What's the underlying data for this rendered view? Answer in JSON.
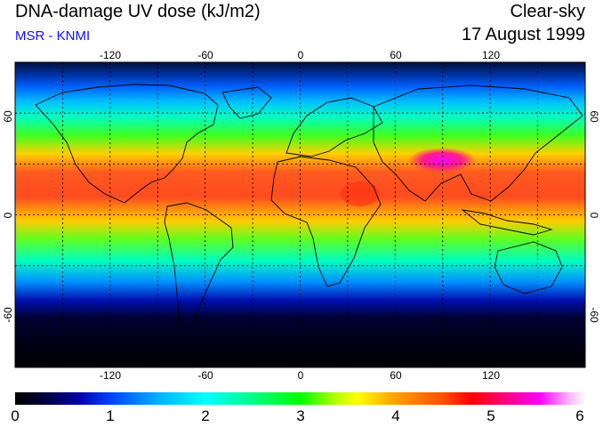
{
  "header": {
    "title": "DNA-damage UV dose (kJ/m2)",
    "source": "MSR - KNMI",
    "sky_condition": "Clear-sky",
    "date": "17 August 1999"
  },
  "map": {
    "lon_tick_labels": [
      "-120",
      "-60",
      "0",
      "60",
      "120"
    ],
    "lat_tick_labels": [
      "60",
      "0",
      "-60"
    ],
    "grid_lons": [
      -150,
      -120,
      -90,
      -60,
      -30,
      0,
      30,
      60,
      90,
      120,
      150
    ],
    "grid_lats": [
      60,
      30,
      0,
      -30,
      -60
    ],
    "extent": {
      "lon": [
        -180,
        180
      ],
      "lat": [
        -90,
        90
      ]
    }
  },
  "colorbar": {
    "tick_labels": [
      "0",
      "1",
      "2",
      "3",
      "4",
      "5",
      "6"
    ],
    "range": [
      0,
      6
    ],
    "colors": [
      "#000000",
      "#0000a0",
      "#00ffff",
      "#00ff00",
      "#ffff00",
      "#ff0000",
      "#ff00ff",
      "#ffffff"
    ]
  }
}
